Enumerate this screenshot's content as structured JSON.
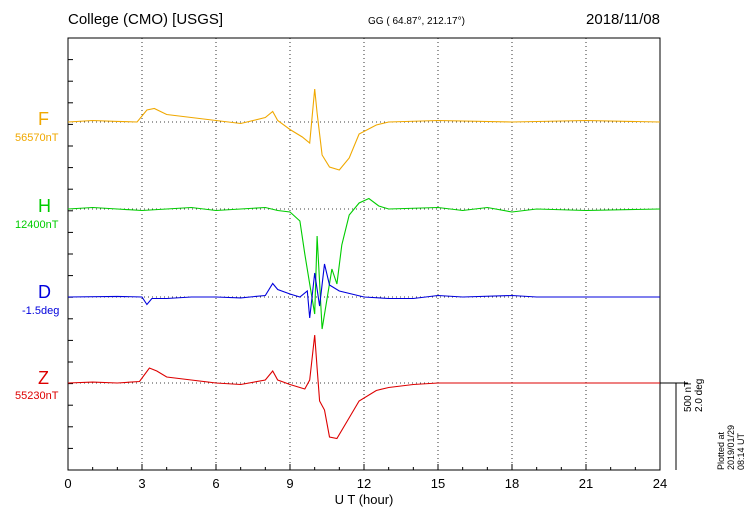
{
  "header": {
    "station": "College (CMO)  [USGS]",
    "coords": "GG ( 64.87°, 212.17°)",
    "date": "2018/11/08"
  },
  "components": [
    {
      "letter": "F",
      "baseline": "56570nT",
      "color": "#f0a800"
    },
    {
      "letter": "H",
      "baseline": "12400nT",
      "color": "#00cc00"
    },
    {
      "letter": "D",
      "baseline": "-1.5deg",
      "color": "#0000dd"
    },
    {
      "letter": "Z",
      "baseline": "55230nT",
      "color": "#dd0000"
    }
  ],
  "scale_label": "500 nT\n2.0 deg",
  "plotted_note": "Plotted at 2019/01/29 08:14 UT",
  "chart_data": {
    "type": "line",
    "xlabel": "U T (hour)",
    "xlim": [
      0,
      24
    ],
    "x_ticks": [
      0,
      3,
      6,
      9,
      12,
      15,
      18,
      21,
      24
    ],
    "grid": true,
    "series": [
      {
        "name": "F",
        "color": "#f0a800",
        "unit": "nT",
        "points": [
          [
            0,
            0
          ],
          [
            1,
            5
          ],
          [
            2,
            2
          ],
          [
            2.8,
            0
          ],
          [
            3.2,
            40
          ],
          [
            3.5,
            45
          ],
          [
            4,
            25
          ],
          [
            5,
            15
          ],
          [
            6,
            5
          ],
          [
            7,
            -5
          ],
          [
            8,
            15
          ],
          [
            8.3,
            35
          ],
          [
            8.5,
            5
          ],
          [
            9,
            -25
          ],
          [
            9.5,
            -50
          ],
          [
            9.8,
            -70
          ],
          [
            10.0,
            110
          ],
          [
            10.1,
            30
          ],
          [
            10.3,
            -110
          ],
          [
            10.6,
            -150
          ],
          [
            11,
            -160
          ],
          [
            11.4,
            -120
          ],
          [
            11.8,
            -40
          ],
          [
            12.5,
            -10
          ],
          [
            13,
            0
          ],
          [
            15,
            5
          ],
          [
            18,
            0
          ],
          [
            21,
            5
          ],
          [
            24,
            0
          ]
        ]
      },
      {
        "name": "H",
        "color": "#00cc00",
        "unit": "nT",
        "points": [
          [
            0,
            0
          ],
          [
            1,
            5
          ],
          [
            2,
            0
          ],
          [
            3,
            -5
          ],
          [
            4,
            0
          ],
          [
            5,
            5
          ],
          [
            6,
            -5
          ],
          [
            7,
            0
          ],
          [
            8,
            5
          ],
          [
            8.5,
            -5
          ],
          [
            9,
            -10
          ],
          [
            9.4,
            -40
          ],
          [
            9.6,
            -150
          ],
          [
            9.8,
            -250
          ],
          [
            10.0,
            -350
          ],
          [
            10.1,
            -90
          ],
          [
            10.3,
            -400
          ],
          [
            10.5,
            -300
          ],
          [
            10.7,
            -200
          ],
          [
            10.9,
            -250
          ],
          [
            11.1,
            -120
          ],
          [
            11.4,
            -20
          ],
          [
            11.8,
            20
          ],
          [
            12.2,
            35
          ],
          [
            12.6,
            10
          ],
          [
            13,
            0
          ],
          [
            15,
            5
          ],
          [
            16,
            -5
          ],
          [
            17,
            5
          ],
          [
            18,
            -10
          ],
          [
            19,
            0
          ],
          [
            21,
            -5
          ],
          [
            24,
            0
          ]
        ]
      },
      {
        "name": "D",
        "color": "#0000dd",
        "unit": "deg",
        "points": [
          [
            0,
            0
          ],
          [
            2,
            2
          ],
          [
            3,
            0
          ],
          [
            3.2,
            -25
          ],
          [
            3.4,
            -5
          ],
          [
            4,
            -5
          ],
          [
            5,
            0
          ],
          [
            6,
            0
          ],
          [
            7,
            -3
          ],
          [
            8,
            5
          ],
          [
            8.3,
            45
          ],
          [
            8.5,
            25
          ],
          [
            9,
            10
          ],
          [
            9.4,
            0
          ],
          [
            9.7,
            20
          ],
          [
            9.8,
            -70
          ],
          [
            10,
            80
          ],
          [
            10.2,
            -30
          ],
          [
            10.4,
            110
          ],
          [
            10.6,
            40
          ],
          [
            11,
            20
          ],
          [
            11.5,
            10
          ],
          [
            12,
            0
          ],
          [
            13,
            -5
          ],
          [
            14,
            -5
          ],
          [
            15,
            5
          ],
          [
            16,
            0
          ],
          [
            18,
            5
          ],
          [
            19,
            0
          ],
          [
            21,
            0
          ],
          [
            24,
            0
          ]
        ]
      },
      {
        "name": "Z",
        "color": "#dd0000",
        "unit": "nT",
        "points": [
          [
            0,
            0
          ],
          [
            1,
            3
          ],
          [
            2,
            0
          ],
          [
            2.9,
            5
          ],
          [
            3.3,
            50
          ],
          [
            3.6,
            40
          ],
          [
            4,
            20
          ],
          [
            5,
            10
          ],
          [
            6,
            0
          ],
          [
            7,
            -5
          ],
          [
            8,
            10
          ],
          [
            8.3,
            40
          ],
          [
            8.5,
            10
          ],
          [
            9,
            -5
          ],
          [
            9.6,
            -20
          ],
          [
            9.8,
            10
          ],
          [
            10.0,
            160
          ],
          [
            10.1,
            50
          ],
          [
            10.2,
            -60
          ],
          [
            10.4,
            -90
          ],
          [
            10.6,
            -180
          ],
          [
            10.9,
            -185
          ],
          [
            11.3,
            -130
          ],
          [
            11.8,
            -60
          ],
          [
            12.5,
            -25
          ],
          [
            13,
            -15
          ],
          [
            14,
            -5
          ],
          [
            15,
            0
          ],
          [
            18,
            0
          ],
          [
            21,
            0
          ],
          [
            24,
            0
          ]
        ]
      }
    ]
  }
}
